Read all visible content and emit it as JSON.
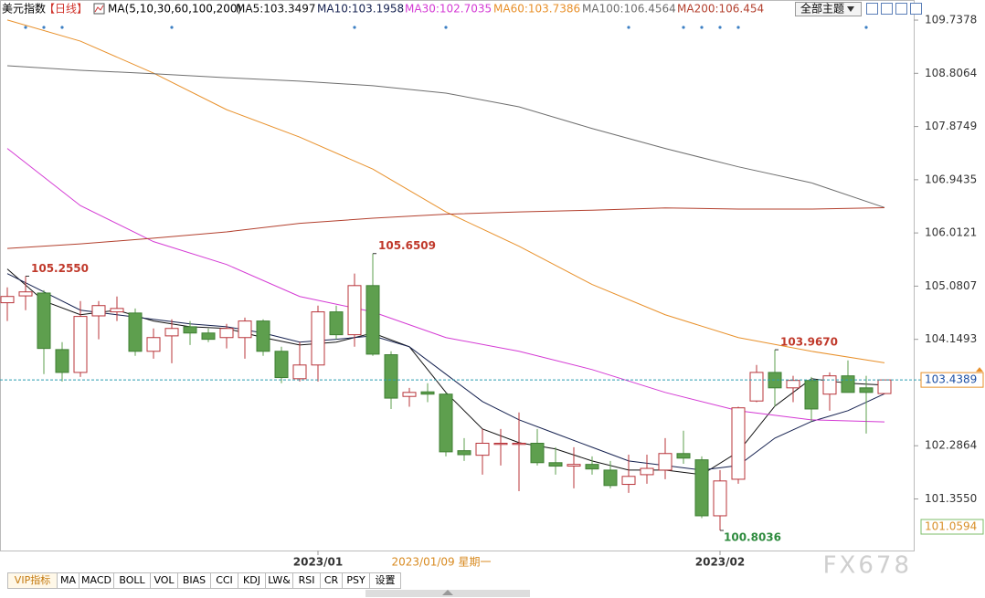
{
  "chart_data": {
    "type": "candlestick",
    "title": "美元指数",
    "period": "【日线】",
    "ma_title": "MA(5,10,30,60,100,200)",
    "theme_button": "全部主题",
    "crosshair_label": "2023/01/09 星期一",
    "watermark": "FX678",
    "categories": [
      null,
      null,
      null,
      null,
      null,
      null,
      null,
      null,
      null,
      null,
      null,
      null,
      null,
      null,
      null,
      null,
      null,
      "2023/01",
      null,
      null,
      null,
      null,
      null,
      null,
      null,
      null,
      null,
      null,
      null,
      null,
      null,
      null,
      null,
      null,
      null,
      null,
      null,
      null,
      null,
      "2023/02",
      null,
      null,
      null,
      null,
      null,
      null,
      null,
      null,
      null
    ],
    "open": [
      104.79,
      104.91,
      104.96,
      103.97,
      103.57,
      104.56,
      104.63,
      104.61,
      103.94,
      104.21,
      104.37,
      104.26,
      104.18,
      104.18,
      104.47,
      103.94,
      103.46,
      103.7,
      104.63,
      104.23,
      105.09,
      103.88,
      103.15,
      103.23,
      103.19,
      102.2,
      102.12,
      102.31,
      102.31,
      102.33,
      101.99,
      101.93,
      101.96,
      101.86,
      101.61,
      101.78,
      101.86,
      102.15,
      102.04,
      101.06,
      101.7,
      103.07,
      103.57,
      103.3,
      103.43,
      103.19,
      103.51,
      103.3,
      103.2
    ],
    "high": [
      105.06,
      105.255,
      105.01,
      104.1,
      104.82,
      104.82,
      104.9,
      104.69,
      104.34,
      104.5,
      104.47,
      104.34,
      104.42,
      104.53,
      104.5,
      104.02,
      104.1,
      104.74,
      104.74,
      105.3,
      105.6509,
      103.94,
      103.3,
      103.38,
      103.22,
      102.42,
      102.58,
      102.58,
      102.87,
      102.58,
      102.26,
      102.26,
      102.1,
      102.02,
      102.13,
      102.13,
      102.42,
      102.55,
      102.1,
      101.86,
      102.97,
      103.7,
      103.967,
      103.51,
      103.49,
      103.57,
      103.78,
      103.51,
      103.41
    ],
    "low": [
      104.47,
      104.66,
      103.54,
      103.41,
      103.49,
      104.15,
      104.47,
      103.86,
      103.81,
      103.73,
      104.05,
      104.1,
      103.99,
      103.81,
      103.86,
      103.38,
      103.41,
      103.41,
      104.15,
      104.02,
      103.86,
      102.93,
      102.97,
      103.05,
      102.1,
      102.02,
      101.78,
      101.94,
      101.49,
      101.94,
      101.78,
      101.54,
      101.78,
      101.54,
      101.46,
      101.62,
      101.7,
      101.97,
      101.02,
      100.8036,
      101.62,
      103.05,
      102.97,
      103.05,
      102.71,
      102.9,
      103.22,
      102.5,
      103.19
    ],
    "close": [
      104.9,
      104.98,
      103.99,
      103.57,
      104.55,
      104.74,
      104.69,
      103.94,
      104.18,
      104.34,
      104.26,
      104.15,
      104.34,
      104.47,
      103.94,
      103.48,
      103.7,
      104.63,
      104.23,
      105.09,
      103.89,
      103.12,
      103.22,
      103.19,
      102.18,
      102.13,
      102.33,
      102.33,
      102.33,
      101.99,
      101.93,
      101.96,
      101.88,
      101.59,
      101.75,
      101.89,
      102.15,
      102.07,
      101.06,
      101.67,
      102.95,
      103.57,
      103.3,
      103.43,
      102.93,
      103.51,
      103.22,
      103.22,
      103.4389
    ],
    "high_labels": [
      null,
      "105.2550",
      null,
      null,
      null,
      null,
      null,
      null,
      null,
      null,
      null,
      null,
      null,
      null,
      null,
      null,
      null,
      null,
      null,
      null,
      "105.6509",
      null,
      null,
      null,
      null,
      null,
      null,
      null,
      null,
      null,
      null,
      null,
      null,
      null,
      null,
      null,
      null,
      null,
      null,
      null,
      null,
      null,
      "103.9670",
      null,
      null,
      null,
      null,
      null,
      null
    ],
    "low_labels": [
      null,
      null,
      null,
      null,
      null,
      null,
      null,
      null,
      null,
      null,
      null,
      null,
      null,
      null,
      null,
      null,
      null,
      null,
      null,
      null,
      null,
      null,
      null,
      null,
      null,
      null,
      null,
      null,
      null,
      null,
      null,
      null,
      null,
      null,
      null,
      null,
      null,
      null,
      null,
      "100.8036",
      null,
      null,
      null,
      null,
      null,
      null,
      null,
      null,
      null
    ],
    "up_color": "#b8343a",
    "down_color": "#5e9f4e",
    "series": [
      {
        "name": "MA5:103.3497",
        "color": "#111111",
        "x": [
          0,
          2,
          4,
          6,
          8,
          10,
          12,
          14,
          16,
          18,
          20,
          22,
          24,
          26,
          28,
          30,
          32,
          34,
          36,
          38,
          40,
          42,
          44,
          46,
          48
        ],
        "values": [
          105.38,
          104.82,
          104.58,
          104.66,
          104.47,
          104.37,
          104.34,
          104.18,
          104.05,
          104.1,
          104.26,
          104.02,
          103.22,
          102.58,
          102.34,
          102.23,
          102.02,
          101.86,
          101.86,
          101.78,
          102.18,
          102.98,
          103.46,
          103.38,
          103.3497
        ]
      },
      {
        "name": "MA10:103.1958",
        "color": "#14204f",
        "x": [
          0,
          2,
          4,
          6,
          8,
          10,
          12,
          14,
          16,
          18,
          20,
          22,
          24,
          26,
          28,
          30,
          32,
          34,
          36,
          38,
          40,
          42,
          44,
          46,
          48
        ],
        "values": [
          105.3,
          104.98,
          104.66,
          104.58,
          104.5,
          104.42,
          104.37,
          104.26,
          104.1,
          104.15,
          104.21,
          104.02,
          103.54,
          103.06,
          102.74,
          102.5,
          102.26,
          102.02,
          101.94,
          101.86,
          101.94,
          102.42,
          102.71,
          102.9,
          103.1958
        ]
      },
      {
        "name": "MA30:102.7035",
        "color": "#d43ad4",
        "x": [
          0,
          4,
          8,
          12,
          16,
          20,
          24,
          28,
          32,
          36,
          40,
          44,
          48
        ],
        "values": [
          107.49,
          106.49,
          105.86,
          105.46,
          104.9,
          104.63,
          104.18,
          103.94,
          103.62,
          103.22,
          102.9,
          102.74,
          102.7035
        ]
      },
      {
        "name": "MA60:103.7386",
        "color": "#e8902a",
        "x": [
          0,
          4,
          8,
          12,
          16,
          20,
          24,
          28,
          32,
          36,
          40,
          44,
          48
        ],
        "values": [
          109.74,
          109.37,
          108.81,
          108.17,
          107.69,
          107.13,
          106.38,
          105.78,
          105.11,
          104.58,
          104.18,
          103.94,
          103.7386
        ]
      },
      {
        "name": "MA100:106.4564",
        "color": "#6e6e6e",
        "x": [
          0,
          4,
          8,
          12,
          16,
          20,
          24,
          28,
          32,
          36,
          40,
          44,
          48
        ],
        "values": [
          108.94,
          108.86,
          108.8,
          108.73,
          108.67,
          108.59,
          108.46,
          108.22,
          107.84,
          107.49,
          107.17,
          106.89,
          106.4564
        ]
      },
      {
        "name": "MA200:106.454",
        "color": "#b3402e",
        "x": [
          0,
          4,
          8,
          12,
          16,
          20,
          24,
          28,
          32,
          36,
          40,
          44,
          48
        ],
        "values": [
          105.74,
          105.82,
          105.92,
          106.03,
          106.18,
          106.27,
          106.34,
          106.38,
          106.41,
          106.45,
          106.43,
          106.43,
          106.454
        ]
      }
    ],
    "ylim": [
      100.5,
      110.01
    ],
    "yticks": [
      109.7378,
      108.8064,
      107.8749,
      106.9435,
      106.0121,
      105.0807,
      104.1493,
      102.2864,
      {
        "value": 101.355,
        "label": "101.3550"
      }
    ],
    "last_price": 103.4389,
    "range_low": 101.0594,
    "indicator_tabs": [
      "VIP指标",
      "MA",
      "MACD",
      "BOLL",
      "VOL",
      "BIAS",
      "CCI",
      "KDJ",
      "LW&",
      "RSI",
      "CR",
      "PSY",
      "设置"
    ]
  }
}
